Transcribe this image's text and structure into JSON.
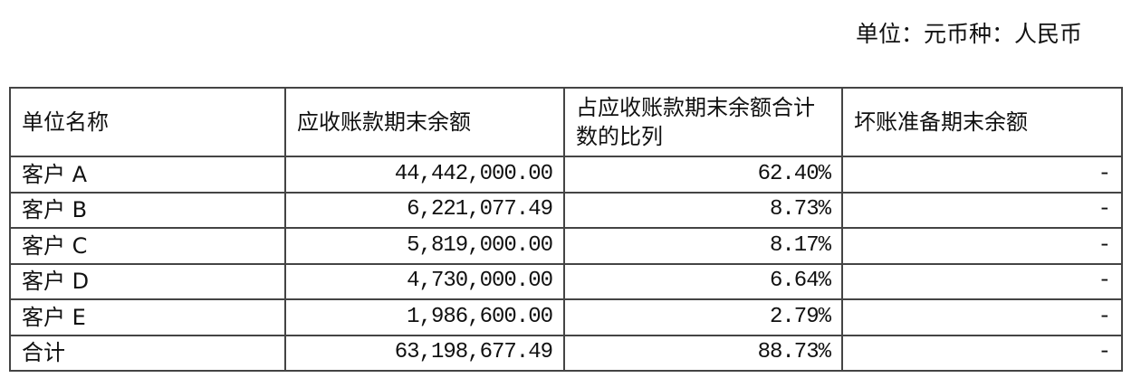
{
  "unit_note": "单位：元币种：人民币",
  "table": {
    "headers": [
      "单位名称",
      "应收账款期末余额",
      "占应收账款期末余额合计数的比列",
      "坏账准备期末余额"
    ],
    "rows": [
      {
        "name": "客户 A",
        "balance": "44,442,000.00",
        "ratio": "62.40%",
        "provision": "-"
      },
      {
        "name": "客户 B",
        "balance": "6,221,077.49",
        "ratio": "8.73%",
        "provision": "-"
      },
      {
        "name": "客户 C",
        "balance": "5,819,000.00",
        "ratio": "8.17%",
        "provision": "-"
      },
      {
        "name": "客户 D",
        "balance": "4,730,000.00",
        "ratio": "6.64%",
        "provision": "-"
      },
      {
        "name": "客户 E",
        "balance": "1,986,600.00",
        "ratio": "2.79%",
        "provision": "-"
      },
      {
        "name": "合计",
        "balance": "63,198,677.49",
        "ratio": "88.73%",
        "provision": "-"
      }
    ]
  }
}
